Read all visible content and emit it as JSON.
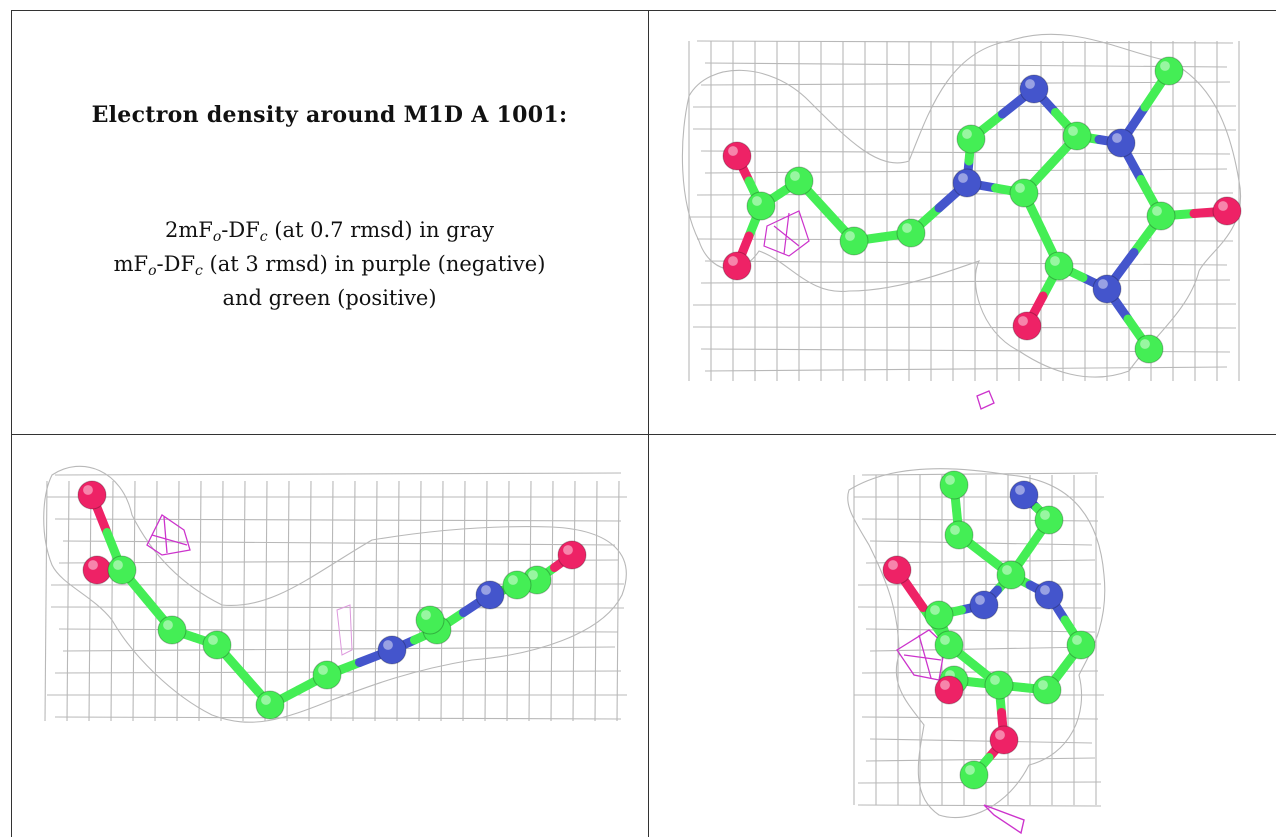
{
  "caption": {
    "title": "Electron density around M1D A 1001:",
    "map1": {
      "prefix": "2mF",
      "sub1": "o",
      "mid": "-DF",
      "sub2": "c",
      "suffix": " (at 0.7 rmsd) in gray"
    },
    "map2": {
      "prefix": "mF",
      "sub1": "o",
      "mid": "-DF",
      "sub2": "c",
      "suffix": " (at 3 rmsd) in purple (negative)"
    },
    "map2_tail": "and green (positive)"
  },
  "colors": {
    "carbon": "#44ee55",
    "nitrogen": "#4455cc",
    "oxygen": "#ee2266",
    "mesh_2fofc": "#b8b8b8",
    "mesh_negative": "#cc33cc"
  }
}
